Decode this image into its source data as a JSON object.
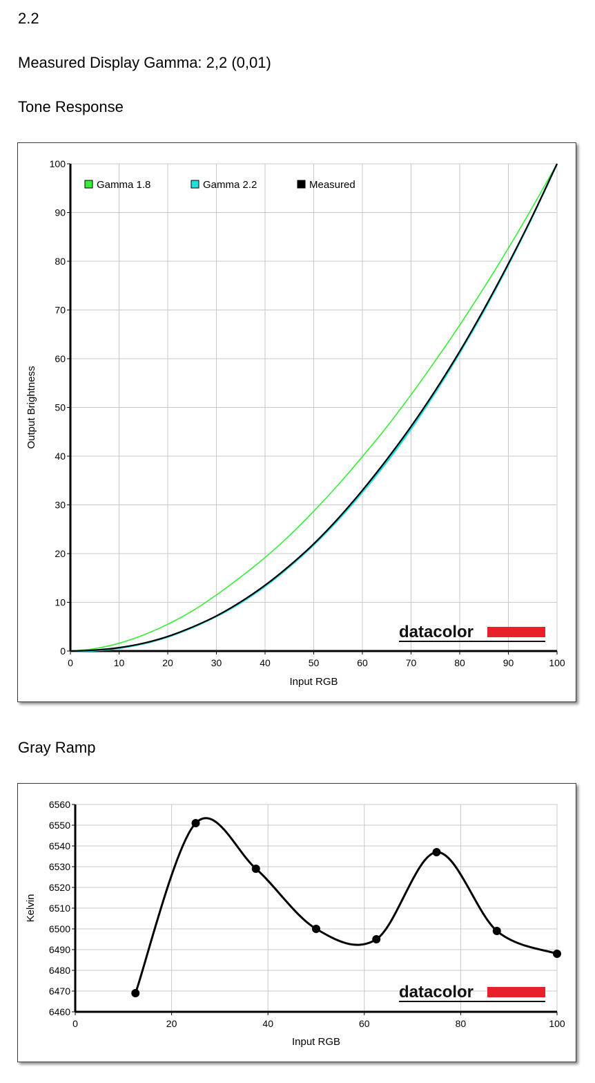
{
  "header": {
    "top_value": "2.2",
    "measured_gamma_text": "Measured Display Gamma: 2,2 (0,01)",
    "tone_section_title": "Tone Response",
    "gray_section_title": "Gray Ramp"
  },
  "logo_text": "datacolor",
  "colors": {
    "gamma18": "#33ee33",
    "gamma22": "#22dddd",
    "measured": "#000000",
    "logo_red": "#e8202a"
  },
  "chart_data": [
    {
      "type": "line",
      "xlabel": "Input RGB",
      "ylabel": "Output Brightness",
      "xlim": [
        0,
        100
      ],
      "ylim": [
        0,
        100
      ],
      "xticks": [
        0,
        10,
        20,
        30,
        40,
        50,
        60,
        70,
        80,
        90,
        100
      ],
      "yticks": [
        0,
        10,
        20,
        30,
        40,
        50,
        60,
        70,
        80,
        90,
        100
      ],
      "grid": true,
      "legend": "top-left",
      "series": [
        {
          "name": "Gamma 1.8",
          "color": "#33ee33",
          "x": [
            0,
            5,
            10,
            15,
            20,
            25,
            30,
            35,
            40,
            45,
            50,
            55,
            60,
            65,
            70,
            75,
            80,
            85,
            90,
            95,
            100
          ],
          "y": [
            0,
            0.5,
            1.6,
            3.3,
            5.5,
            8.2,
            11.5,
            15.2,
            19.2,
            23.7,
            28.7,
            34.1,
            39.9,
            46.0,
            52.6,
            59.6,
            66.9,
            74.6,
            82.7,
            91.2,
            100
          ]
        },
        {
          "name": "Gamma 2.2",
          "color": "#22dddd",
          "x": [
            0,
            5,
            10,
            15,
            20,
            25,
            30,
            35,
            40,
            45,
            50,
            55,
            60,
            65,
            70,
            75,
            80,
            85,
            90,
            95,
            100
          ],
          "y": [
            0,
            0.1,
            0.6,
            1.5,
            2.9,
            4.8,
            7.1,
            9.9,
            13.3,
            17.3,
            21.8,
            26.9,
            32.6,
            38.8,
            45.6,
            53.1,
            61.2,
            69.9,
            79.3,
            89.3,
            100
          ]
        },
        {
          "name": "Measured",
          "color": "#000000",
          "x": [
            0,
            5,
            10,
            15,
            20,
            25,
            30,
            35,
            40,
            45,
            50,
            55,
            60,
            65,
            70,
            75,
            80,
            85,
            90,
            95,
            100
          ],
          "y": [
            0,
            0.2,
            0.7,
            1.6,
            3.0,
            4.9,
            7.2,
            10.1,
            13.5,
            17.5,
            22.0,
            27.2,
            33.0,
            39.3,
            46.1,
            53.5,
            61.5,
            70.2,
            79.5,
            89.4,
            100
          ]
        }
      ]
    },
    {
      "type": "line",
      "xlabel": "Input RGB",
      "ylabel": "Kelvin",
      "xlim": [
        0,
        100
      ],
      "ylim": [
        6460,
        6560
      ],
      "xticks": [
        0,
        20,
        40,
        60,
        80,
        100
      ],
      "yticks": [
        6460,
        6470,
        6480,
        6490,
        6500,
        6510,
        6520,
        6530,
        6540,
        6550,
        6560
      ],
      "grid": true,
      "series": [
        {
          "color": "#000000",
          "x": [
            12.5,
            25,
            37.5,
            50,
            62.5,
            75,
            87.5,
            100
          ],
          "y": [
            6469,
            6551,
            6529,
            6500,
            6495,
            6537,
            6499,
            6488
          ]
        }
      ]
    }
  ]
}
